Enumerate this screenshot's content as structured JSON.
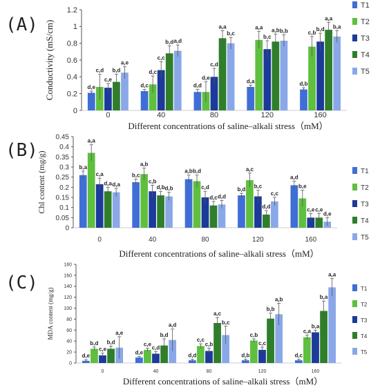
{
  "colors": {
    "T1": "#3f6fd6",
    "T2": "#5fbf3f",
    "T3": "#1c3a9a",
    "T4": "#2f7f2a",
    "T5": "#8aa8e8"
  },
  "chart_data": [
    {
      "type": "bar",
      "panel_label": "(A)",
      "title": "",
      "xlabel": "Different concentrations of saline–alkali stress（mM）",
      "ylabel": "Conductivity (mS/cm)",
      "ylim": [
        0,
        1.2
      ],
      "yticks": [
        "0",
        "0.2",
        "0.4",
        "0.6",
        "0.8",
        "1",
        "1.2"
      ],
      "categories": [
        "0",
        "40",
        "80",
        "120",
        "160"
      ],
      "legend": "right",
      "grid": false,
      "series": [
        {
          "name": "T1",
          "values": [
            0.21,
            0.23,
            0.22,
            0.28,
            0.25
          ],
          "errors": [
            0.02,
            0.02,
            0.03,
            0.02,
            0.02
          ],
          "labels": [
            "d,e",
            "d,c",
            "d,d",
            "d,a",
            "d,b"
          ]
        },
        {
          "name": "T2",
          "values": [
            0.28,
            0.31,
            0.22,
            0.84,
            0.76
          ],
          "errors": [
            0.15,
            0.1,
            0.12,
            0.1,
            0.12
          ],
          "labels": [
            "c,d",
            "d,c",
            "d,e",
            "a,a",
            "c,b"
          ]
        },
        {
          "name": "T3",
          "values": [
            0.27,
            0.48,
            0.4,
            0.73,
            0.82
          ],
          "errors": [
            0.05,
            0.1,
            0.1,
            0.1,
            0.1
          ],
          "labels": [
            "c,e",
            "c,c",
            "c,d",
            "b,c",
            "b,d"
          ]
        },
        {
          "name": "T4",
          "values": [
            0.34,
            0.68,
            0.86,
            0.82,
            0.96
          ],
          "errors": [
            0.09,
            0.09,
            0.09,
            0.09,
            0.09
          ],
          "labels": [
            "b,d",
            "b,d",
            "a,a",
            "a,b",
            "a,a"
          ]
        },
        {
          "name": "T5",
          "values": [
            0.45,
            0.71,
            0.8,
            0.83,
            0.88
          ],
          "errors": [
            0.07,
            0.07,
            0.07,
            0.07,
            0.07
          ],
          "labels": [
            "a,e",
            "a,d",
            "b,c",
            "b,b",
            "b,a"
          ]
        }
      ]
    },
    {
      "type": "bar",
      "panel_label": "(B)",
      "title": "",
      "xlabel": "Different concentrations of saline–alkali stress（mM）",
      "ylabel": "Chl content (mg/g)",
      "ylim": [
        0,
        0.45
      ],
      "yticks": [
        "0",
        "0.05",
        "0.1",
        "0.15",
        "0.2",
        "0.25",
        "0.3",
        "0.35",
        "0.4",
        "0.45"
      ],
      "categories": [
        "0",
        "40",
        "80",
        "120",
        "160"
      ],
      "legend": "right",
      "grid": false,
      "series": [
        {
          "name": "T1",
          "values": [
            0.26,
            0.225,
            0.24,
            0.16,
            0.21
          ],
          "errors": [
            0.02,
            0.015,
            0.02,
            0.01,
            0.02
          ],
          "labels": [
            "b,a",
            "b,c",
            "a,b",
            "b,d",
            "a,d"
          ]
        },
        {
          "name": "T2",
          "values": [
            0.37,
            0.265,
            0.23,
            0.235,
            0.145
          ],
          "errors": [
            0.04,
            0.03,
            0.03,
            0.035,
            0.04
          ],
          "labels": [
            "a,a",
            "a,b",
            "b,d",
            "a,c",
            "b,e"
          ]
        },
        {
          "name": "T3",
          "values": [
            0.215,
            0.18,
            0.15,
            0.155,
            0.05
          ],
          "errors": [
            0.03,
            0.03,
            0.03,
            0.03,
            0.02
          ],
          "labels": [
            "c,a",
            "c,b",
            "c,d",
            "b,c",
            "c,e"
          ]
        },
        {
          "name": "T4",
          "values": [
            0.18,
            0.16,
            0.11,
            0.065,
            0.05
          ],
          "errors": [
            0.02,
            0.02,
            0.02,
            0.02,
            0.02
          ],
          "labels": [
            "d,a",
            "d,b",
            "d,c",
            "d,d",
            "c,e"
          ]
        },
        {
          "name": "T5",
          "values": [
            0.175,
            0.155,
            0.115,
            0.13,
            0.03
          ],
          "errors": [
            0.02,
            0.02,
            0.02,
            0.02,
            0.02
          ],
          "labels": [
            "d,a",
            "d,b",
            "d,d",
            "c,c",
            "d,e"
          ]
        }
      ]
    },
    {
      "type": "bar",
      "panel_label": "(C)",
      "title": "",
      "xlabel": "Different concentrations of saline–alkali stress（mM）",
      "ylabel": "MDA content (mg/g)",
      "ylim": [
        0,
        180
      ],
      "yticks": [
        "0",
        "20",
        "40",
        "60",
        "80",
        "100",
        "120",
        "140",
        "160",
        "180"
      ],
      "categories": [
        "0",
        "40",
        "80",
        "120",
        "160"
      ],
      "legend": "right",
      "grid": false,
      "series": [
        {
          "name": "T1",
          "values": [
            4,
            10,
            5,
            5,
            5
          ],
          "errors": [
            2,
            2,
            2,
            2,
            2
          ],
          "labels": [
            "d,e",
            "d,e",
            "d,d",
            "d,b",
            "d,c"
          ]
        },
        {
          "name": "T2",
          "values": [
            26,
            24,
            31,
            41,
            47
          ],
          "errors": [
            3,
            3,
            4,
            3,
            4
          ],
          "labels": [
            "b,d",
            "c,e",
            "c,c",
            "c,b",
            "c,a"
          ]
        },
        {
          "name": "T3",
          "values": [
            14,
            17,
            22,
            24,
            56
          ],
          "errors": [
            4,
            4,
            5,
            5,
            4
          ],
          "labels": [
            "c,e",
            "c,d",
            "c,b",
            "c,c",
            "b,a"
          ]
        },
        {
          "name": "T4",
          "values": [
            26,
            32,
            73,
            81,
            95
          ],
          "errors": [
            5,
            12,
            10,
            10,
            18
          ],
          "labels": [
            "b,d",
            "b,d",
            "a,c",
            "b,b",
            "b,a"
          ]
        },
        {
          "name": "T5",
          "values": [
            28,
            42,
            51,
            89,
            138
          ],
          "errors": [
            20,
            20,
            16,
            20,
            16
          ],
          "labels": [
            "a,e",
            "a,d",
            "b,c",
            "a,b",
            "a,a"
          ]
        }
      ]
    }
  ]
}
